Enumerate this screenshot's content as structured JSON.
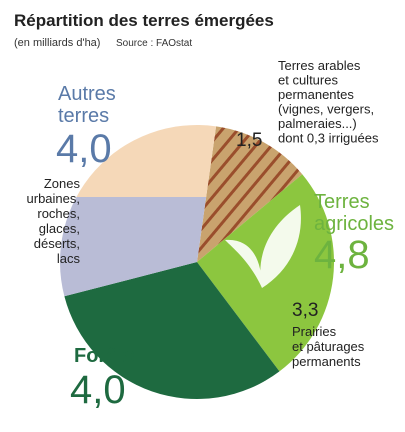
{
  "chart_data": {
    "type": "pie",
    "title": "Répartition des terres émergées",
    "subtitle": "(en milliards d'ha)",
    "source": "Source : FAOstat",
    "slices": [
      {
        "label_lines": [
          "Terres arables",
          "et cultures",
          "permanentes",
          "(vignes, vergers,",
          "palmeraies...)",
          "dont 0,3 irriguées"
        ],
        "value": 1.5,
        "value_label": "1,5",
        "color": "#9a4e2c",
        "pattern": "stripes",
        "background": "#c9a36e"
      },
      {
        "label_lines": [
          "Prairies",
          "et pâturages",
          "permanents"
        ],
        "value": 3.3,
        "value_label": "3,3",
        "color": "#8cc63f"
      },
      {
        "label_lines": [
          "Forêts"
        ],
        "value": 4.0,
        "value_label": "4,0",
        "color": "#1e6a40",
        "label_color": "#1e6a40"
      },
      {
        "label_lines": [
          "Autres",
          "terres"
        ],
        "value": 4.0,
        "value_label": "4,0",
        "color": "#b9bcd6",
        "top_color": "#f5d8b8",
        "label_color": "#5a7aa8",
        "note_lines": [
          "Zones",
          "urbaines,",
          "roches,",
          "glaces,",
          "déserts,",
          "lacs"
        ]
      }
    ],
    "group": {
      "label_lines": [
        "Terres",
        "agricoles"
      ],
      "value": 4.8,
      "value_label": "4,8",
      "color": "#6db33f"
    }
  }
}
